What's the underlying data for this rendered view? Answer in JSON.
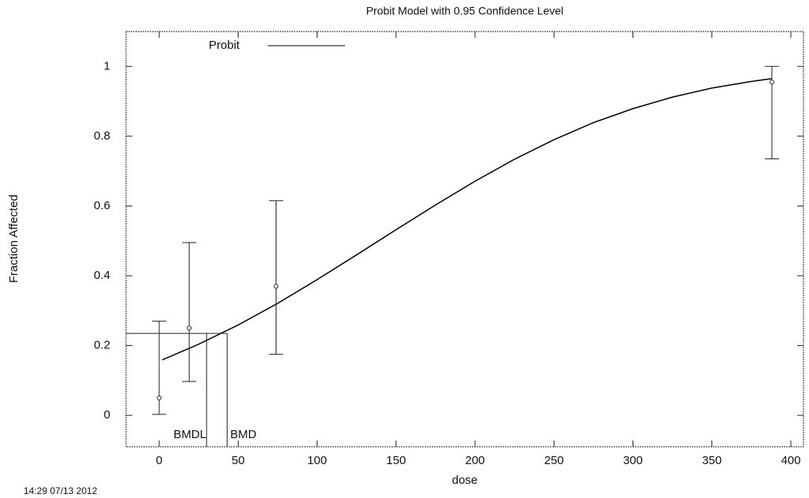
{
  "chart_data": {
    "type": "probit",
    "title": "Probit Model with 0.95 Confidence Level",
    "xlabel": "dose",
    "ylabel": "Fraction Affected",
    "xlim": [
      -21,
      408
    ],
    "ylim": [
      -0.09,
      1.1
    ],
    "xticks": [
      0,
      50,
      100,
      150,
      200,
      250,
      300,
      350,
      400
    ],
    "yticks": [
      0,
      0.2,
      0.4,
      0.6,
      0.8,
      1
    ],
    "observed": {
      "x": [
        0,
        19,
        74,
        388
      ],
      "values": [
        0.05,
        0.25,
        0.37,
        0.955
      ],
      "lower": [
        0.003,
        0.097,
        0.175,
        0.735
      ],
      "upper": [
        0.27,
        0.495,
        0.615,
        1.0
      ]
    },
    "series": [
      {
        "name": "Probit",
        "color": "#000000",
        "x": [
          2,
          25,
          50,
          75,
          100,
          125,
          150,
          175,
          200,
          225,
          250,
          275,
          300,
          325,
          350,
          375,
          388
        ],
        "values": [
          0.159,
          0.204,
          0.259,
          0.321,
          0.389,
          0.46,
          0.532,
          0.603,
          0.671,
          0.734,
          0.79,
          0.839,
          0.879,
          0.912,
          0.938,
          0.957,
          0.965
        ]
      }
    ],
    "bmr_level": 0.235,
    "bmdl": {
      "label": "BMDL",
      "x": 30
    },
    "bmd": {
      "label": "BMD",
      "x": 43
    },
    "footer": "14:29 07/13 2012"
  }
}
